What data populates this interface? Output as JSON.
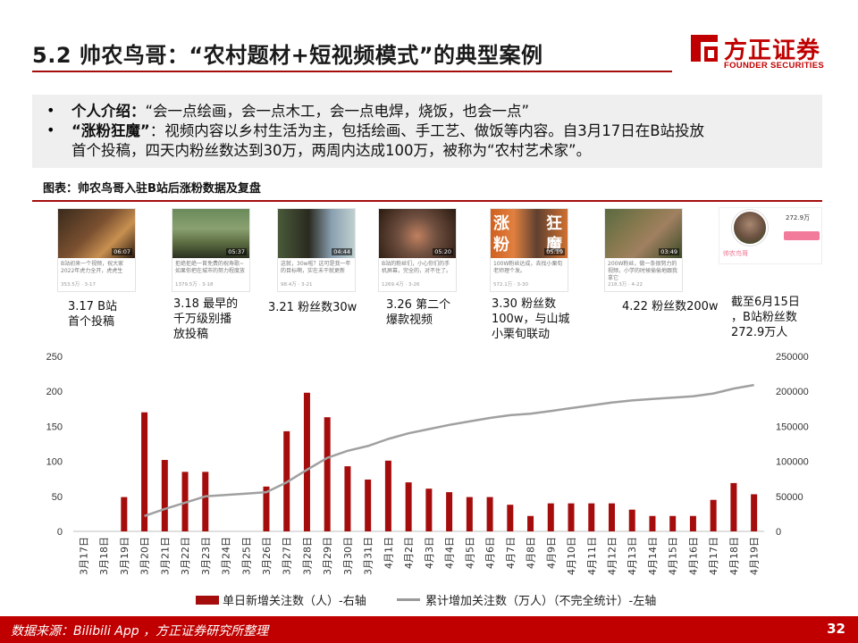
{
  "header": {
    "title": "5.2 帅农鸟哥：“农村题材+短视频模式”的典型案例",
    "logo_cn": "方正证券",
    "logo_en": "FOUNDER SECURITIES"
  },
  "intro": {
    "line1_label": "个人介绍：",
    "line1_text": "“会一点绘画，会一点木工，会一点电焊，烧饭，也会一点”",
    "line2_label": "“涨粉狂魔”",
    "line2_text": "：视频内容以乡村生活为主，包括绘画、手工艺、做饭等内容。自3月17日在B站投放",
    "line3_text": "首个投稿，四天内粉丝数达到30万，两周内达成100万，被称为“农村艺术家”。",
    "bullet": "•"
  },
  "figure": {
    "title": "图表：帅农鸟哥入驻B站后涨粉数据及复盘"
  },
  "thumbnails": [
    {
      "duration": "06:07",
      "text": "B站初来一个视频，祝大家2022年虎力全开，虎虎生",
      "meta": "353.5万 · 3-17"
    },
    {
      "duration": "05:37",
      "text": "拒绝拒绝一首免费的祝寿歌~如果你把在城市的努力程度放",
      "meta": "1379.5万 · 3-18"
    },
    {
      "duration": "04:44",
      "text": "这就，30w啦？这可是我一年的目标啊，实在未干就更新",
      "meta": "98.4万 · 3-21"
    },
    {
      "duration": "05:20",
      "text": "B站的粉丝们，小心你们的手机屏幕，完全的，对不住了。",
      "meta": "1269.4万 · 3-26"
    },
    {
      "duration": "05:19",
      "text": "100W粉丝达成，去找小栗旬老师理个发。",
      "meta": "572.1万 · 3-30",
      "overlay1": "涨",
      "overlay2": "狂",
      "overlay3": "粉",
      "overlay4": "魔"
    },
    {
      "duration": "03:49",
      "text": "200W粉丝，做一条很努力的视频，小学的时候偷偷地跟我拿它",
      "meta": "218.3万 · 4-22"
    }
  ],
  "profile": {
    "fans": "272.9万",
    "name": "帅农鸟哥"
  },
  "milestones": [
    {
      "lines": [
        "3.17 B站",
        "首个投稿"
      ]
    },
    {
      "lines": [
        "3.18 最早的",
        "千万级别播",
        "放投稿"
      ]
    },
    {
      "lines": [
        "3.21 粉丝数30w"
      ]
    },
    {
      "lines": [
        "3.26 第二个",
        "爆款视频"
      ]
    },
    {
      "lines": [
        "3.30 粉丝数",
        "100w，与山城",
        "小栗旬联动"
      ]
    },
    {
      "lines": [
        "4.22 粉丝数200w"
      ]
    },
    {
      "lines": [
        "截至6月15日",
        "，B站粉丝数",
        "272.9万人"
      ]
    }
  ],
  "chart_data": {
    "type": "bar+line",
    "categories": [
      "3月17日",
      "3月18日",
      "3月19日",
      "3月20日",
      "3月21日",
      "3月22日",
      "3月23日",
      "3月24日",
      "3月25日",
      "3月26日",
      "3月27日",
      "3月28日",
      "3月29日",
      "3月30日",
      "3月31日",
      "4月1日",
      "4月2日",
      "4月3日",
      "4月4日",
      "4月5日",
      "4月6日",
      "4月7日",
      "4月8日",
      "4月9日",
      "4月10日",
      "4月11日",
      "4月12日",
      "4月13日",
      "4月14日",
      "4月15日",
      "4月16日",
      "4月17日",
      "4月18日",
      "4月19日"
    ],
    "series": [
      {
        "name": "单日新增关注数（人）-右轴",
        "type": "bar",
        "axis": "left",
        "color": "#a50d0d",
        "values": [
          0,
          0,
          49,
          170,
          102,
          85,
          85,
          0,
          0,
          64,
          143,
          198,
          163,
          93,
          74,
          101,
          70,
          61,
          56,
          49,
          49,
          38,
          22,
          40,
          40,
          40,
          40,
          31,
          22,
          22,
          22,
          45,
          69,
          53
        ]
      },
      {
        "name": "累计增加关注数（万人）（不完全统计）-左轴",
        "type": "line",
        "axis": "right",
        "color": "#a0a0a0",
        "values": [
          null,
          null,
          null,
          22000,
          32000,
          41000,
          50000,
          52000,
          54000,
          56000,
          70000,
          88000,
          105000,
          115000,
          122000,
          132000,
          140000,
          146000,
          152000,
          157000,
          162000,
          166000,
          168000,
          172000,
          176000,
          180000,
          184000,
          187000,
          189000,
          191000,
          193000,
          197000,
          204000,
          209000
        ]
      }
    ],
    "left_ticks": [
      "0",
      "50",
      "100",
      "150",
      "200",
      "250"
    ],
    "right_ticks": [
      "0",
      "50000",
      "100000",
      "150000",
      "200000",
      "250000"
    ],
    "ylim_left": [
      0,
      250
    ],
    "ylim_right": [
      0,
      250000
    ],
    "grid": false,
    "legend_position": "bottom"
  },
  "footer": {
    "source": "数据来源：Bilibili App ，方正证券研究所整理",
    "page": "32"
  }
}
